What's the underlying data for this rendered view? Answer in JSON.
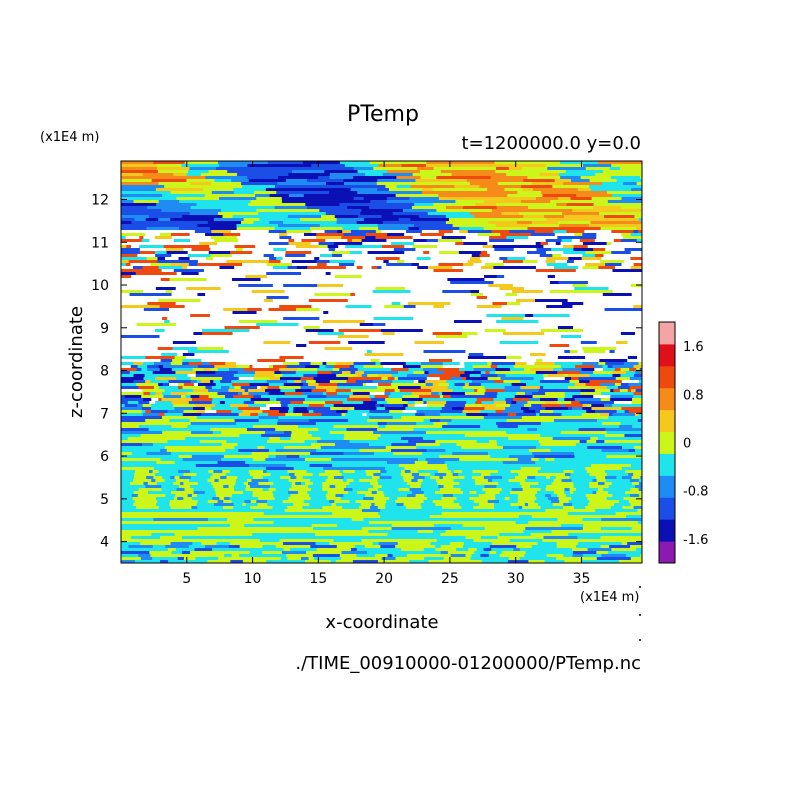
{
  "chart_data": {
    "type": "heatmap",
    "title": "PTemp",
    "subtitle": "t=1200000.0 y=0.0",
    "xlabel": "x-coordinate",
    "ylabel": "z-coordinate",
    "x_unit": "(x1E4 m)",
    "y_unit": "(x1E4 m)",
    "source_file": "./TIME_00910000-01200000/PTemp.nc",
    "xlim": [
      0,
      39.6
    ],
    "ylim": [
      3.5,
      12.9
    ],
    "x_ticks": [
      5,
      10,
      15,
      20,
      25,
      30,
      35
    ],
    "y_ticks": [
      4,
      5,
      6,
      7,
      8,
      9,
      10,
      11,
      12
    ],
    "colorbar": {
      "levels": [
        -2.0,
        -1.6,
        -1.2,
        -0.8,
        -0.4,
        0,
        0.4,
        0.8,
        1.2,
        1.6,
        2.0
      ],
      "tick_labels": [
        "1.6",
        "0.8",
        "0",
        "-0.8",
        "-1.6"
      ],
      "tick_values": [
        1.6,
        0.8,
        0,
        -0.8,
        -1.6
      ],
      "colors": [
        "#8a1ab0",
        "#0a10b4",
        "#1a4ee6",
        "#1e8cf2",
        "#20e4ec",
        "#ccf51a",
        "#f5c81e",
        "#f58c1a",
        "#ee4a10",
        "#e0101a",
        "#f5a4a4"
      ]
    },
    "bands": [
      {
        "z": [
          3.5,
          4.0
        ],
        "pattern": "cyan-yellow mix, blue streaks"
      },
      {
        "z": [
          4.0,
          4.8
        ],
        "pattern": "horizontal yellow-cyan stripes"
      },
      {
        "z": [
          4.8,
          5.7
        ],
        "pattern": "vertical cyan cells on yellow"
      },
      {
        "z": [
          5.7,
          7.0
        ],
        "pattern": "layered cyan/yellow/blue"
      },
      {
        "z": [
          7.0,
          8.2
        ],
        "pattern": "mixed stripes incl. red, orange, dark blue"
      },
      {
        "z": [
          8.2,
          10.4
        ],
        "pattern": "mostly white with thin colored streaks"
      },
      {
        "z": [
          10.4,
          11.3
        ],
        "pattern": "white billows with red/blue fringes"
      },
      {
        "z": [
          11.3,
          12.9
        ],
        "pattern": "large yellow/orange and blue patches"
      }
    ]
  },
  "colors": {
    "frame": "#000000",
    "background": "#ffffff"
  }
}
